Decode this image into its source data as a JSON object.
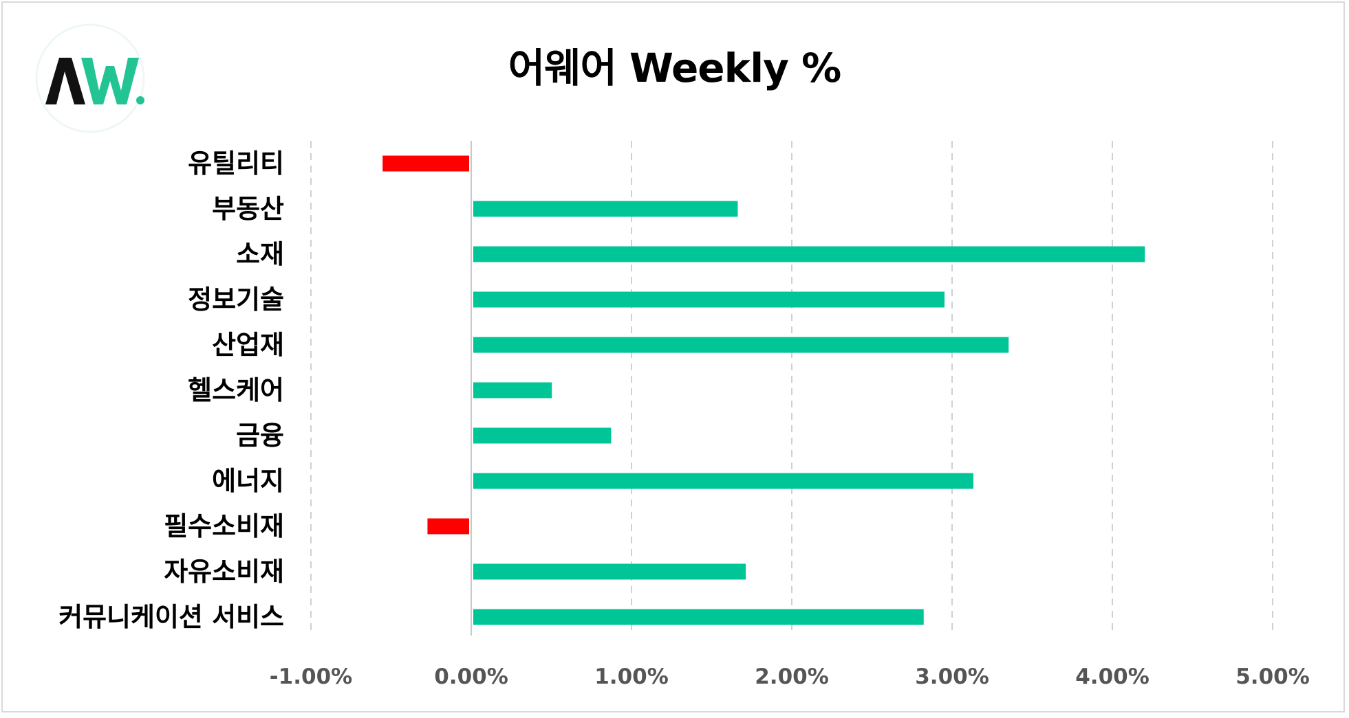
{
  "title": "어웨어 Weekly %",
  "logo": {
    "text": "AW.",
    "accent_color": "#22c493",
    "dark_color": "#111111"
  },
  "colors": {
    "positive": "#00c596",
    "negative": "#ff0000",
    "grid": "#d0d0d0",
    "zero_line": "#c8c8c8"
  },
  "chart_data": {
    "type": "bar",
    "orientation": "horizontal",
    "title": "어웨어 Weekly %",
    "categories": [
      "유틸리티",
      "부동산",
      "소재",
      "정보기술",
      "산업재",
      "헬스케어",
      "금융",
      "에너지",
      "필수소비재",
      "자유소비재",
      "커뮤니케이션 서비스"
    ],
    "values": [
      -0.54,
      1.65,
      4.19,
      2.94,
      3.34,
      0.49,
      0.86,
      3.12,
      -0.26,
      1.7,
      2.81
    ],
    "xlim": [
      -1.0,
      5.0
    ],
    "xticks": [
      -1.0,
      0.0,
      1.0,
      2.0,
      3.0,
      4.0,
      5.0
    ],
    "xtick_labels": [
      "-1.00%",
      "0.00%",
      "1.00%",
      "2.00%",
      "3.00%",
      "4.00%",
      "5.00%"
    ],
    "xlabel": "",
    "ylabel": "",
    "grid": "vertical-dashed",
    "legend": "none"
  }
}
